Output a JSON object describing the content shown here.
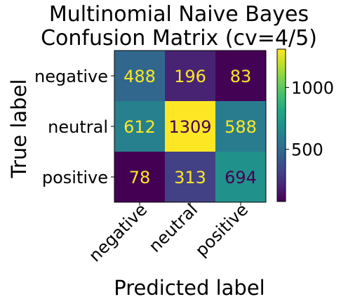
{
  "chart_data": {
    "type": "heatmap",
    "title": [
      "Multinomial Naive Bayes",
      "Confusion Matrix (cv=4/5)"
    ],
    "xlabel": "Predicted label",
    "ylabel": "True label",
    "row_labels": [
      "negative",
      "neutral",
      "positive"
    ],
    "col_labels": [
      "negative",
      "neutral",
      "positive"
    ],
    "values": [
      [
        488,
        196,
        83
      ],
      [
        612,
        1309,
        588
      ],
      [
        78,
        313,
        694
      ]
    ],
    "colormap": "viridis",
    "colorbar": {
      "range": [
        78,
        1309
      ],
      "ticks": [
        500,
        1000
      ]
    },
    "light_text_color": "#fde725",
    "dark_text_color": "#440154"
  }
}
